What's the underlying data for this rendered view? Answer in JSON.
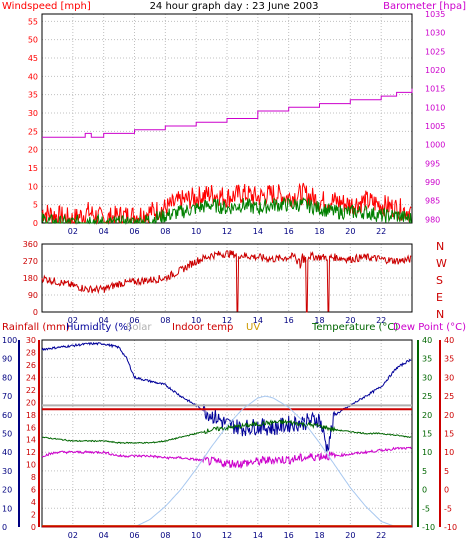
{
  "title": "24 hour graph day : 23 June 2003",
  "colors": {
    "wind_speed": "#ff0000",
    "wind_gust": "#008000",
    "barometer": "#cc00cc",
    "direction": "#cc0000",
    "rainfall": "#cc0000",
    "humidity": "#000099",
    "solar": "#b0b0b0",
    "indoor_temp": "#cc0000",
    "uv": "#cc9900",
    "temperature": "#006600",
    "dew_point": "#cc00cc",
    "solar_curve": "#a8c8f0",
    "grid": "#c0c0c0",
    "axis_left": "#000080",
    "axis_right": "#cc0000"
  },
  "chart_data": [
    {
      "type": "line",
      "panel": "wind-barometer",
      "left_axis_label": "Windspeed [mph]",
      "right_axis_label": "Barometer [hpa]",
      "left_ticks": [
        0,
        5,
        10,
        15,
        20,
        25,
        30,
        35,
        40,
        45,
        50,
        55
      ],
      "right_ticks": [
        980,
        985,
        990,
        995,
        1000,
        1005,
        1010,
        1015,
        1020,
        1025,
        1030,
        1035
      ],
      "x_ticks": [
        "02",
        "04",
        "06",
        "08",
        "10",
        "12",
        "14",
        "16",
        "18",
        "20",
        "22"
      ],
      "ylim_left": [
        0,
        57
      ],
      "ylim_right": [
        979,
        1035
      ],
      "xlim": [
        0,
        24
      ],
      "series": [
        {
          "key": "barometer",
          "axis": "right",
          "x": [
            0,
            2,
            2.8,
            3.2,
            4,
            6,
            8,
            10,
            12,
            14,
            16,
            18,
            20,
            22,
            23,
            24
          ],
          "values": [
            1002,
            1002,
            1003,
            1002,
            1003,
            1004,
            1005,
            1006,
            1007,
            1009,
            1010,
            1011,
            1012,
            1013,
            1014,
            1015
          ]
        },
        {
          "key": "wind_speed",
          "axis": "left",
          "x": [
            0,
            1,
            2,
            3,
            4,
            5,
            6,
            7,
            8,
            9,
            10,
            11,
            12,
            13,
            14,
            15,
            16,
            17,
            18,
            19,
            20,
            21,
            22,
            23,
            24
          ],
          "values": [
            3,
            2,
            1,
            3,
            1,
            2,
            2,
            3,
            4,
            6,
            7,
            8,
            7,
            8,
            7,
            8,
            7,
            8,
            6,
            6,
            5,
            6,
            5,
            4,
            3
          ]
        },
        {
          "key": "wind_gust",
          "axis": "left",
          "x": [
            0,
            1,
            2,
            3,
            4,
            5,
            6,
            7,
            8,
            9,
            10,
            11,
            12,
            13,
            14,
            15,
            16,
            17,
            18,
            19,
            20,
            21,
            22,
            23,
            24
          ],
          "values": [
            1,
            0,
            0,
            1,
            0,
            0,
            0,
            1,
            2,
            3,
            4,
            5,
            4,
            5,
            4,
            5,
            5,
            5,
            4,
            3,
            3,
            3,
            2,
            2,
            1
          ]
        }
      ]
    },
    {
      "type": "line",
      "panel": "wind-direction",
      "left_ticks": [
        0,
        90,
        180,
        270,
        360
      ],
      "compass": [
        "N",
        "W",
        "S",
        "E",
        "N"
      ],
      "x_ticks": [
        "02",
        "04",
        "06",
        "08",
        "10",
        "12",
        "14",
        "16",
        "18",
        "20",
        "22"
      ],
      "ylim": [
        0,
        360
      ],
      "xlim": [
        0,
        24
      ],
      "series": [
        {
          "key": "direction",
          "x": [
            0,
            1,
            2,
            3,
            4,
            5,
            6,
            7,
            8,
            9,
            10,
            11,
            12,
            13,
            14,
            15,
            16,
            17,
            18,
            19,
            20,
            21,
            22,
            23,
            24
          ],
          "values": [
            180,
            160,
            140,
            120,
            120,
            150,
            160,
            170,
            180,
            220,
            270,
            300,
            310,
            300,
            290,
            280,
            290,
            300,
            290,
            290,
            280,
            290,
            280,
            270,
            280
          ]
        }
      ]
    },
    {
      "type": "line",
      "panel": "climate",
      "legend": [
        "Rainfall (mm)",
        "Humidity (%)",
        "Solar",
        "Indoor temp",
        "UV",
        "Temperature (°C)",
        "Dew Point (°C)"
      ],
      "humidity_ticks": [
        0,
        10,
        20,
        30,
        40,
        50,
        60,
        70,
        80,
        90,
        100
      ],
      "rain_ticks": [
        0,
        2,
        4,
        6,
        8,
        10,
        12,
        14,
        16,
        18,
        20,
        22,
        24,
        26,
        28,
        30
      ],
      "temp_ticks": [
        -10,
        -5,
        0,
        5,
        10,
        15,
        20,
        25,
        30,
        35,
        40
      ],
      "x_ticks": [
        "02",
        "04",
        "06",
        "08",
        "10",
        "12",
        "14",
        "16",
        "18",
        "20",
        "22"
      ],
      "ylim_humidity": [
        0,
        100
      ],
      "ylim_temp": [
        -10,
        40
      ],
      "xlim": [
        0,
        24
      ],
      "series": [
        {
          "key": "humidity",
          "axis": "humidity",
          "x": [
            0,
            1,
            2,
            3,
            4,
            5,
            5.5,
            6,
            7,
            8,
            9,
            10,
            11,
            12,
            13,
            14,
            15,
            16,
            17,
            18,
            18.5,
            19,
            20,
            21,
            22,
            23,
            24
          ],
          "values": [
            95,
            96,
            97,
            98,
            98,
            96,
            90,
            80,
            78,
            76,
            70,
            65,
            60,
            55,
            53,
            54,
            53,
            55,
            56,
            58,
            42,
            60,
            65,
            70,
            75,
            85,
            90
          ]
        },
        {
          "key": "solar",
          "axis": "humidity",
          "x": [
            0,
            24
          ],
          "values": [
            65,
            65
          ]
        },
        {
          "key": "indoor_temp",
          "axis": "temp",
          "x": [
            0,
            24
          ],
          "values": [
            21.5,
            21.5
          ]
        },
        {
          "key": "temperature",
          "axis": "temp",
          "x": [
            0,
            1,
            2,
            3,
            4,
            5,
            6,
            7,
            8,
            9,
            10,
            11,
            12,
            13,
            14,
            15,
            16,
            17,
            18,
            19,
            20,
            21,
            22,
            23,
            24
          ],
          "values": [
            14,
            13.5,
            13,
            13,
            13,
            12.5,
            12.5,
            12.5,
            13,
            14,
            15,
            16,
            16.5,
            17,
            17.5,
            18,
            18,
            17.5,
            17,
            16,
            15.5,
            15,
            15,
            14.5,
            14
          ]
        },
        {
          "key": "dew_point",
          "axis": "temp",
          "x": [
            0,
            1,
            2,
            3,
            4,
            5,
            6,
            7,
            8,
            9,
            10,
            11,
            12,
            13,
            14,
            15,
            16,
            17,
            18,
            19,
            20,
            21,
            22,
            23,
            24
          ],
          "values": [
            9,
            10,
            10,
            10,
            10,
            9,
            9,
            9,
            8.5,
            8.5,
            8,
            7.5,
            7,
            7,
            7.5,
            8,
            8,
            8.5,
            9,
            9,
            9.5,
            10,
            10.5,
            11,
            11
          ]
        },
        {
          "key": "solar_curve",
          "axis": "humidity",
          "x": [
            6,
            7,
            8,
            9,
            10,
            11,
            12,
            13,
            14,
            14.5,
            15,
            16,
            17,
            18,
            19,
            20,
            21,
            22,
            23
          ],
          "values": [
            0,
            4,
            11,
            20,
            31,
            43,
            54,
            63,
            69,
            70,
            69,
            64,
            56,
            45,
            33,
            21,
            11,
            3,
            0
          ]
        },
        {
          "key": "uv",
          "axis": "humidity",
          "x": [
            0,
            24
          ],
          "values": [
            0.5,
            0.5
          ]
        },
        {
          "key": "rainfall",
          "axis": "humidity",
          "x": [
            0,
            24
          ],
          "values": [
            0.3,
            0.3
          ]
        }
      ]
    }
  ]
}
